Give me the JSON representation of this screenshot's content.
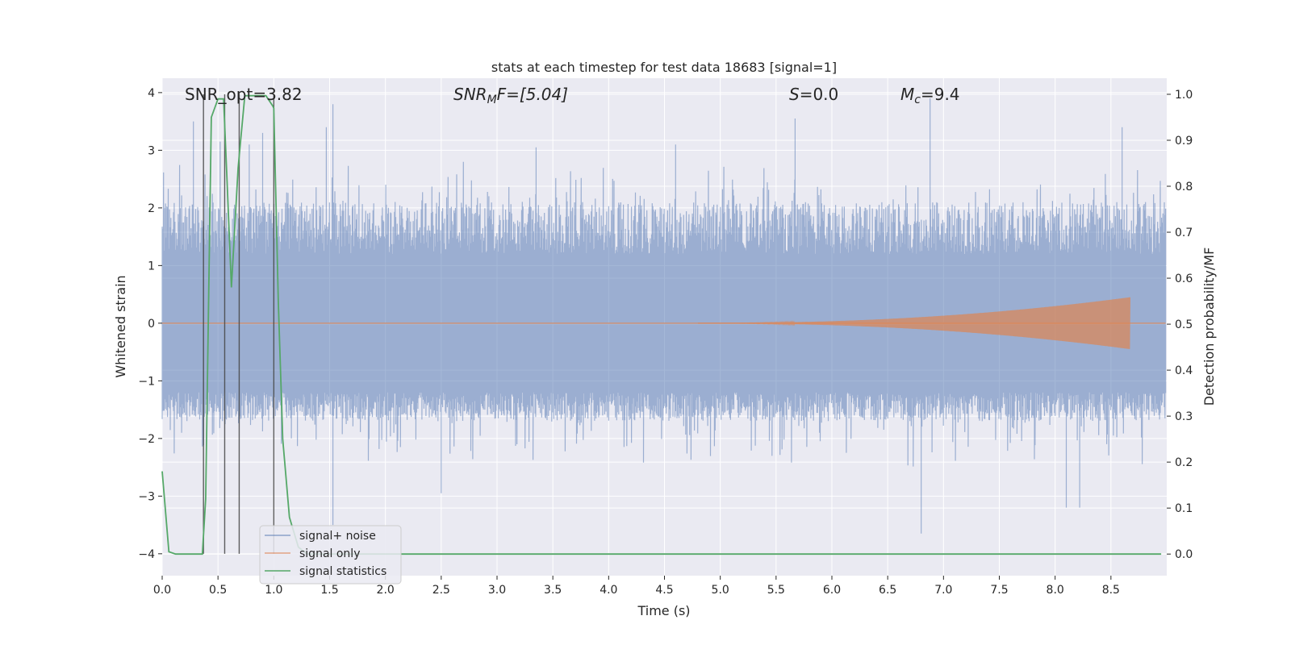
{
  "chart_data": {
    "type": "line",
    "title": "stats at each timestep for test data 18683 [signal=1]",
    "xlabel": "Time (s)",
    "ylabel": "Whitened strain",
    "ylabel_right": "Detection probability/MF",
    "xlim": [
      0.0,
      9.0
    ],
    "ylim": [
      -4.38,
      4.25
    ],
    "ylim_right": [
      -0.047,
      1.035
    ],
    "x_ticks": [
      "0.0",
      "0.5",
      "1.0",
      "1.5",
      "2.0",
      "2.5",
      "3.0",
      "3.5",
      "4.0",
      "4.5",
      "5.0",
      "5.5",
      "6.0",
      "6.5",
      "7.0",
      "7.5",
      "8.0",
      "8.5"
    ],
    "y_ticks": [
      "4",
      "3",
      "2",
      "1",
      "0",
      "−1",
      "−2",
      "−3",
      "−4"
    ],
    "y_ticks_right": [
      "1.0",
      "0.9",
      "0.8",
      "0.7",
      "0.6",
      "0.5",
      "0.4",
      "0.3",
      "0.2",
      "0.1",
      "0.0"
    ],
    "grid": true,
    "legend_position": "lower-left",
    "annotations": {
      "snr_opt": "SNR_opt=3.82",
      "snr_mf_sym": "SNR",
      "snr_mf_sub": "M",
      "snr_mf_rest": "F=[5.04]",
      "s_sym": "S",
      "s_rest": "=0.0",
      "mc_sym": "M",
      "mc_sub": "c",
      "mc_rest": "=9.4"
    },
    "vertical_lines_x": [
      0.37,
      0.56,
      0.69,
      1.0
    ],
    "series": [
      {
        "name": "signal+ noise",
        "color": "#4c72b0",
        "envelope_typical": [
          -1.7,
          2.1
        ],
        "peaks": [
          [
            0.28,
            3.5
          ],
          [
            0.52,
            3.15
          ],
          [
            0.78,
            3.1
          ],
          [
            0.9,
            3.3
          ],
          [
            1.47,
            3.4
          ],
          [
            1.53,
            3.8
          ],
          [
            1.53,
            -3.5
          ],
          [
            2.5,
            -2.95
          ],
          [
            3.35,
            3.05
          ],
          [
            4.6,
            3.1
          ],
          [
            5.67,
            3.55
          ],
          [
            6.88,
            3.9
          ],
          [
            6.8,
            -3.65
          ],
          [
            8.1,
            -3.2
          ],
          [
            8.22,
            -3.2
          ],
          [
            8.6,
            3.4
          ]
        ]
      },
      {
        "name": "signal only",
        "color": "#dd8452",
        "chirp_start": 4.8,
        "chirp_end": 8.67,
        "chirp_peak_amplitude": 0.45
      },
      {
        "name": "signal statistics",
        "color": "#55a868",
        "x": [
          0.0,
          0.06,
          0.12,
          0.2,
          0.28,
          0.36,
          0.39,
          0.44,
          0.5,
          0.55,
          0.58,
          0.62,
          0.68,
          0.74,
          0.8,
          0.86,
          0.93,
          0.99,
          1.0,
          1.04,
          1.08,
          1.14,
          1.22,
          1.3,
          1.5,
          2.0,
          3.0,
          4.0,
          5.0,
          6.0,
          7.0,
          8.0,
          8.95
        ],
        "y": [
          0.18,
          0.005,
          0.0,
          0.0,
          0.0,
          0.0,
          0.12,
          0.95,
          0.99,
          0.99,
          0.82,
          0.58,
          0.84,
          0.997,
          0.997,
          0.997,
          0.997,
          0.975,
          0.97,
          0.55,
          0.25,
          0.08,
          0.015,
          0.0,
          0.0,
          0.0,
          0.0,
          0.0,
          0.0,
          0.0,
          0.0,
          0.0,
          0.0
        ]
      }
    ]
  }
}
